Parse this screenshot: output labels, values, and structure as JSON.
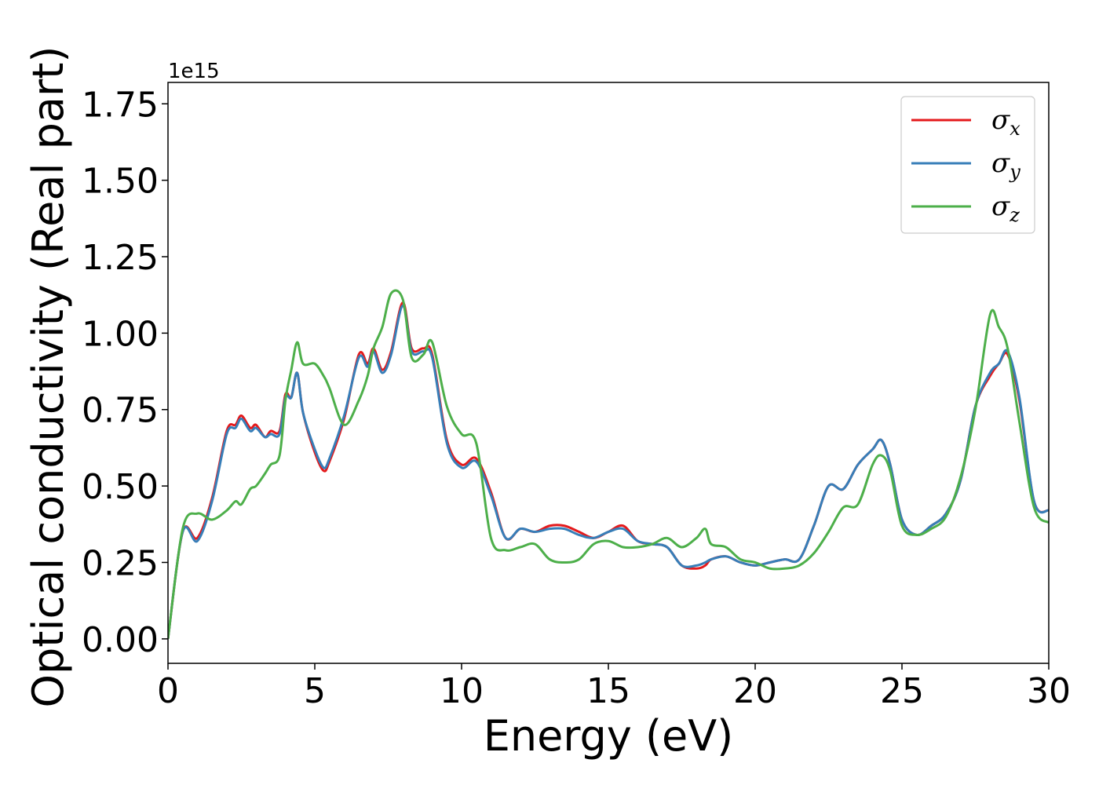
{
  "chart_data": {
    "type": "line",
    "xlabel": "Energy (eV)",
    "ylabel": "Optical conductivity (Real part)",
    "y_offset_label": "1e15",
    "xlim": [
      0,
      30
    ],
    "ylim": [
      -0.08,
      1.82
    ],
    "xticks": [
      0,
      5,
      10,
      15,
      20,
      25,
      30
    ],
    "xtick_labels": [
      "0",
      "5",
      "10",
      "15",
      "20",
      "25",
      "30"
    ],
    "yticks": [
      0.0,
      0.25,
      0.5,
      0.75,
      1.0,
      1.25,
      1.5,
      1.75
    ],
    "ytick_labels": [
      "0.00",
      "0.25",
      "0.50",
      "0.75",
      "1.00",
      "1.25",
      "1.50",
      "1.75"
    ],
    "grid": false,
    "legend": {
      "position": "upper right",
      "entries": [
        {
          "symbol": "σ",
          "sub": "x",
          "color": "#e41a1c"
        },
        {
          "symbol": "σ",
          "sub": "y",
          "color": "#377eb8"
        },
        {
          "symbol": "σ",
          "sub": "z",
          "color": "#4daf4a"
        }
      ]
    },
    "x": [
      0,
      0.5,
      1.0,
      1.5,
      2.0,
      2.3,
      2.5,
      2.8,
      3.0,
      3.3,
      3.5,
      3.8,
      4.0,
      4.2,
      4.4,
      4.6,
      5.0,
      5.3,
      5.5,
      6.0,
      6.5,
      6.8,
      7.0,
      7.3,
      7.6,
      8.0,
      8.3,
      8.7,
      9.0,
      9.5,
      10.0,
      10.5,
      11.0,
      11.5,
      12.0,
      12.5,
      13.0,
      13.5,
      14.0,
      14.5,
      15.0,
      15.5,
      16.0,
      16.5,
      17.0,
      17.5,
      18.0,
      18.3,
      18.5,
      19.0,
      19.5,
      20.0,
      20.5,
      21.0,
      21.5,
      22.0,
      22.5,
      23.0,
      23.5,
      24.0,
      24.3,
      24.6,
      25.0,
      25.5,
      26.0,
      26.5,
      27.0,
      27.5,
      28.0,
      28.3,
      28.6,
      29.0,
      29.5,
      30.0
    ],
    "series": [
      {
        "name": "σx",
        "color": "#e41a1c",
        "values": [
          0.0,
          0.35,
          0.33,
          0.46,
          0.68,
          0.7,
          0.73,
          0.69,
          0.7,
          0.66,
          0.68,
          0.68,
          0.8,
          0.79,
          0.87,
          0.74,
          0.61,
          0.55,
          0.58,
          0.72,
          0.93,
          0.9,
          0.95,
          0.88,
          0.94,
          1.1,
          0.95,
          0.95,
          0.93,
          0.65,
          0.57,
          0.59,
          0.48,
          0.33,
          0.36,
          0.35,
          0.37,
          0.37,
          0.35,
          0.33,
          0.35,
          0.37,
          0.32,
          0.31,
          0.3,
          0.24,
          0.23,
          0.24,
          0.26,
          0.27,
          0.25,
          0.24,
          0.25,
          0.26,
          0.26,
          0.37,
          0.5,
          0.49,
          0.57,
          0.62,
          0.65,
          0.57,
          0.39,
          0.34,
          0.37,
          0.41,
          0.52,
          0.76,
          0.86,
          0.9,
          0.93,
          0.78,
          0.45,
          0.42
        ]
      },
      {
        "name": "σy",
        "color": "#377eb8",
        "values": [
          0.0,
          0.35,
          0.32,
          0.45,
          0.67,
          0.69,
          0.72,
          0.68,
          0.69,
          0.66,
          0.67,
          0.67,
          0.79,
          0.79,
          0.87,
          0.74,
          0.62,
          0.56,
          0.59,
          0.73,
          0.92,
          0.89,
          0.94,
          0.87,
          0.93,
          1.09,
          0.94,
          0.94,
          0.92,
          0.64,
          0.56,
          0.58,
          0.47,
          0.33,
          0.36,
          0.35,
          0.36,
          0.36,
          0.34,
          0.33,
          0.35,
          0.36,
          0.32,
          0.31,
          0.3,
          0.24,
          0.24,
          0.25,
          0.26,
          0.27,
          0.25,
          0.24,
          0.25,
          0.26,
          0.26,
          0.37,
          0.5,
          0.49,
          0.57,
          0.62,
          0.65,
          0.57,
          0.39,
          0.34,
          0.37,
          0.41,
          0.52,
          0.76,
          0.87,
          0.9,
          0.94,
          0.79,
          0.45,
          0.42
        ]
      },
      {
        "name": "σz",
        "color": "#4daf4a",
        "values": [
          0.0,
          0.36,
          0.41,
          0.39,
          0.42,
          0.45,
          0.44,
          0.49,
          0.5,
          0.54,
          0.57,
          0.6,
          0.78,
          0.88,
          0.97,
          0.9,
          0.9,
          0.86,
          0.82,
          0.7,
          0.78,
          0.86,
          0.95,
          1.02,
          1.13,
          1.11,
          0.92,
          0.93,
          0.97,
          0.76,
          0.67,
          0.64,
          0.33,
          0.29,
          0.3,
          0.31,
          0.26,
          0.25,
          0.26,
          0.31,
          0.32,
          0.3,
          0.3,
          0.31,
          0.33,
          0.3,
          0.33,
          0.36,
          0.31,
          0.3,
          0.26,
          0.25,
          0.23,
          0.23,
          0.24,
          0.28,
          0.35,
          0.43,
          0.44,
          0.57,
          0.6,
          0.55,
          0.37,
          0.34,
          0.36,
          0.4,
          0.53,
          0.75,
          1.06,
          1.02,
          0.95,
          0.71,
          0.43,
          0.38
        ]
      }
    ]
  }
}
